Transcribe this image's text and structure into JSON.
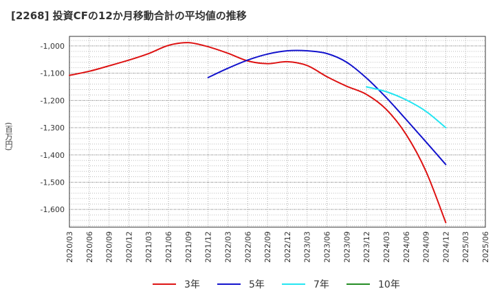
{
  "chart_data": {
    "type": "line",
    "title": "[2268]  投資CFの12か月移動合計の平均値の推移",
    "ylabel": "(百万円)",
    "xlabel": "",
    "ylim": [
      -1665,
      -965
    ],
    "yticks": [
      -1000,
      -1100,
      -1200,
      -1300,
      -1400,
      -1500,
      -1600
    ],
    "ytick_labels": [
      "-1,000",
      "-1,100",
      "-1,200",
      "-1,300",
      "-1,400",
      "-1,500",
      "-1,600"
    ],
    "x_labels": [
      "2020/03",
      "2020/06",
      "2020/09",
      "2020/12",
      "2021/03",
      "2021/06",
      "2021/09",
      "2021/12",
      "2022/03",
      "2022/06",
      "2022/09",
      "2022/12",
      "2023/03",
      "2023/06",
      "2023/09",
      "2023/12",
      "2024/03",
      "2024/06",
      "2024/09",
      "2024/12",
      "2025/03",
      "2025/06"
    ],
    "grid": true,
    "legend_position": "bottom",
    "series": [
      {
        "name": "3年",
        "color": "#dd1111",
        "x": [
          "2020/03",
          "2020/06",
          "2020/09",
          "2020/12",
          "2021/03",
          "2021/06",
          "2021/09",
          "2021/12",
          "2022/03",
          "2022/06",
          "2022/09",
          "2022/12",
          "2023/03",
          "2023/06",
          "2023/09",
          "2023/12",
          "2024/03",
          "2024/06",
          "2024/09",
          "2024/12"
        ],
        "y": [
          -1108,
          -1093,
          -1073,
          -1052,
          -1028,
          -998,
          -988,
          -1003,
          -1027,
          -1055,
          -1065,
          -1058,
          -1072,
          -1113,
          -1148,
          -1178,
          -1233,
          -1325,
          -1460,
          -1648
        ]
      },
      {
        "name": "5年",
        "color": "#1111cc",
        "x": [
          "2021/12",
          "2022/03",
          "2022/06",
          "2022/09",
          "2022/12",
          "2023/03",
          "2023/06",
          "2023/09",
          "2023/12",
          "2024/03",
          "2024/06",
          "2024/09",
          "2024/12"
        ],
        "y": [
          -1116,
          -1082,
          -1052,
          -1030,
          -1018,
          -1018,
          -1028,
          -1060,
          -1118,
          -1190,
          -1270,
          -1352,
          -1435
        ]
      },
      {
        "name": "7年",
        "color": "#22e5f2",
        "x": [
          "2023/12",
          "2024/03",
          "2024/06",
          "2024/09",
          "2024/12"
        ],
        "y": [
          -1150,
          -1168,
          -1198,
          -1240,
          -1300
        ]
      },
      {
        "name": "10年",
        "color": "#228b22",
        "x": [],
        "y": []
      }
    ]
  }
}
